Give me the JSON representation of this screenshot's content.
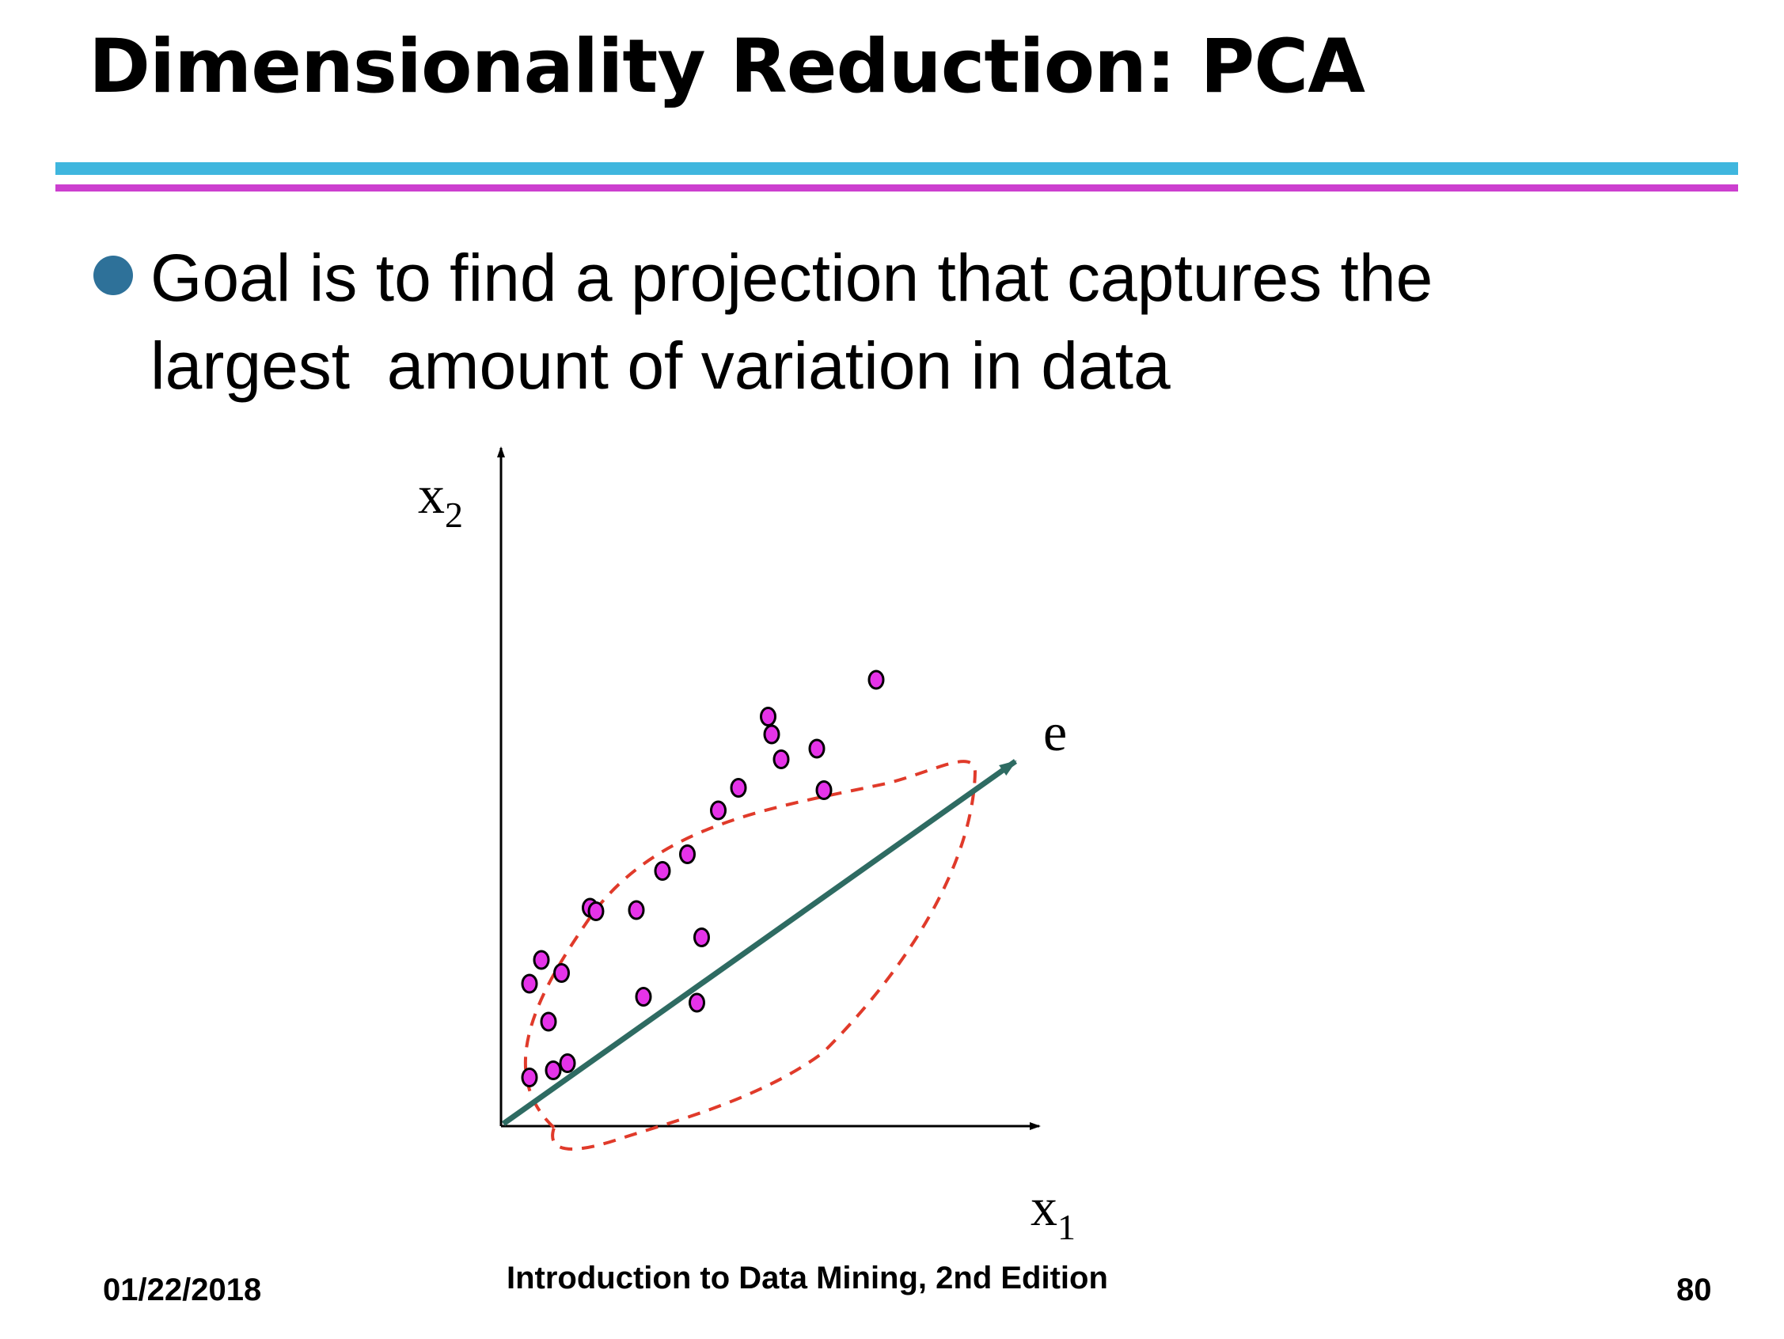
{
  "slide": {
    "title": "Dimensionality Reduction: PCA",
    "bullet_lines": [
      "Goal is to find a projection that captures the",
      "largest  amount of variation in data"
    ]
  },
  "diagram": {
    "x_axis_label": {
      "base": "x",
      "sub": "1"
    },
    "y_axis_label": {
      "base": "x",
      "sub": "2"
    },
    "vector_label": "e",
    "colors": {
      "points": "#e533e8",
      "vector": "#2e6b62",
      "ellipse": "#e03a2a",
      "axes": "#000000"
    },
    "points": [
      [
        2.4,
        4.1
      ],
      [
        4.4,
        4.7
      ],
      [
        5.6,
        5.3
      ],
      [
        4.0,
        8.8
      ],
      [
        2.4,
        12.0
      ],
      [
        5.1,
        12.9
      ],
      [
        3.4,
        14.0
      ],
      [
        7.5,
        18.4
      ],
      [
        8.0,
        18.1
      ],
      [
        11.4,
        18.2
      ],
      [
        12.0,
        10.9
      ],
      [
        16.5,
        10.4
      ],
      [
        16.9,
        15.9
      ],
      [
        13.6,
        21.5
      ],
      [
        15.7,
        22.9
      ],
      [
        18.3,
        26.6
      ],
      [
        20.0,
        28.5
      ],
      [
        23.6,
        30.9
      ],
      [
        26.6,
        31.8
      ],
      [
        22.8,
        33.0
      ],
      [
        22.5,
        34.5
      ],
      [
        27.2,
        28.3
      ],
      [
        31.6,
        37.6
      ]
    ]
  },
  "footer": {
    "date": "01/22/2018",
    "book": "Introduction to Data Mining, 2nd Edition",
    "page": "80"
  }
}
